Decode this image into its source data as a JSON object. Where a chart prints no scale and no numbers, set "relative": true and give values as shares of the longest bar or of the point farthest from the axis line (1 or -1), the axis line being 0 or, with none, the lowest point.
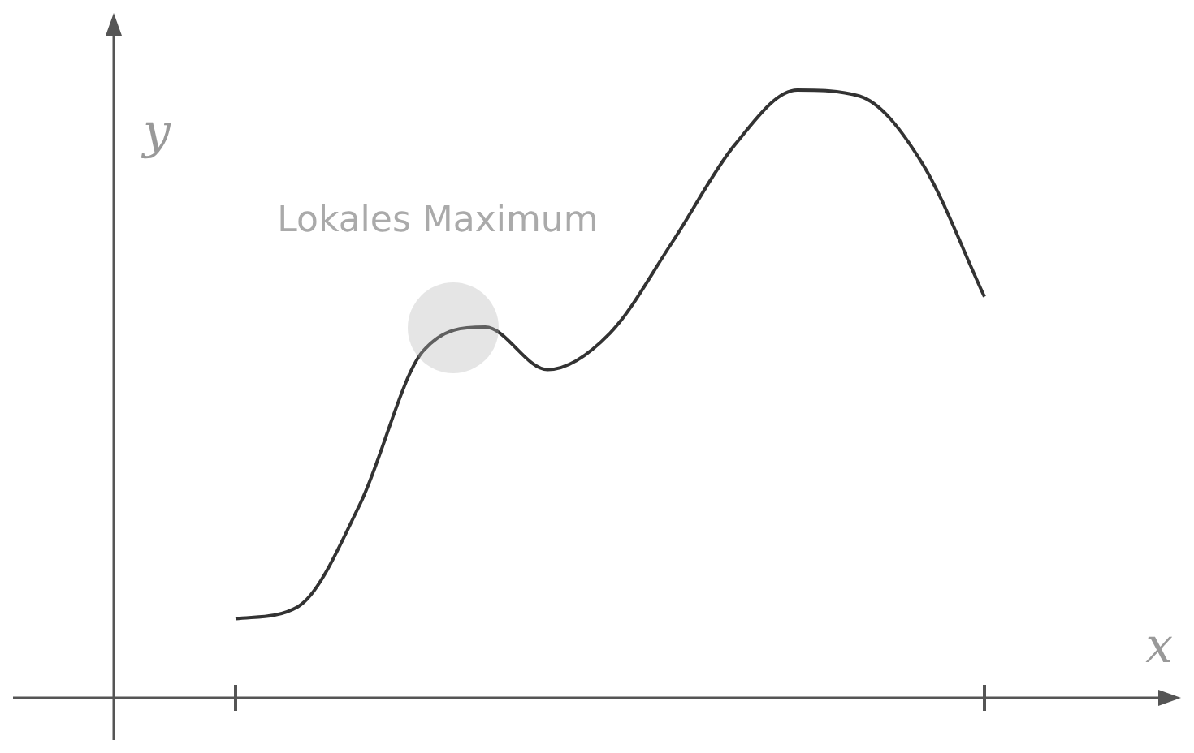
{
  "chart_data": {
    "type": "line",
    "relative": true,
    "xlabel": "x",
    "ylabel": "y",
    "annotations": [
      "Lokales Maximum"
    ],
    "categories": [
      null,
      null,
      null,
      null,
      null,
      null,
      null,
      null,
      null,
      null,
      null,
      null,
      null
    ],
    "series": [
      {
        "color": "#333333",
        "values": [
          0.13,
          0.15,
          0.32,
          0.57,
          0.61,
          0.54,
          0.6,
          0.75,
          0.91,
          1,
          0.99,
          0.88,
          0.66
        ]
      }
    ]
  }
}
